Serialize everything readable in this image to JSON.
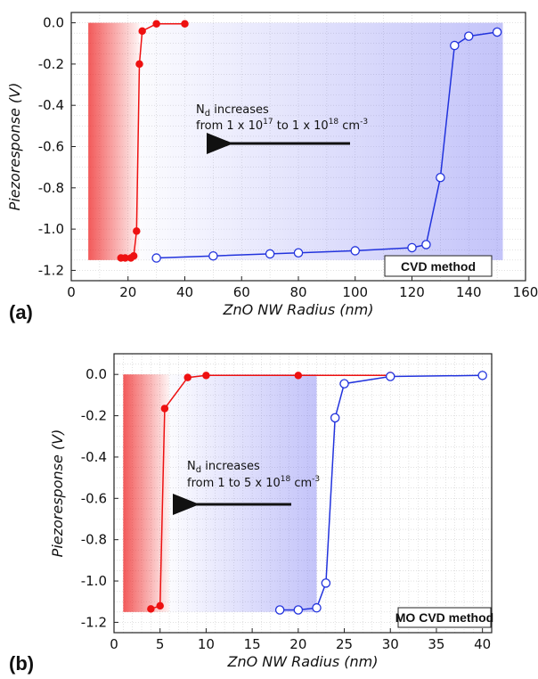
{
  "chart_data": [
    {
      "type": "line",
      "panel_label": "(a)",
      "xlabel": "ZnO NW Radius (nm)",
      "ylabel": "Piezoresponse (V)",
      "xlim": [
        0,
        160
      ],
      "ylim": [
        -1.25,
        0.05
      ],
      "xticks": [
        "0",
        "20",
        "40",
        "60",
        "80",
        "100",
        "120",
        "140",
        "160"
      ],
      "yticks": [
        "0.0",
        "-0.2",
        "-0.4",
        "-0.6",
        "-0.8",
        "-1.0",
        "-1.2"
      ],
      "grid": true,
      "annotation": {
        "line1_prefix": "N",
        "line1_sub": "d",
        "line1_suffix": " increases",
        "line2_a": "from 1 x 10",
        "line2_a_sup": "17",
        "line2_b": " to 1 x 10",
        "line2_b_sup": "18",
        "line2_c": " cm",
        "line2_c_sup": "-3"
      },
      "method_label": "CVD method",
      "series": [
        {
          "color": "#ee1111",
          "marker": "filled-circle",
          "x": [
            17.5,
            19,
            21,
            22,
            23,
            24,
            25,
            30,
            40
          ],
          "y": [
            -1.14,
            -1.14,
            -1.14,
            -1.13,
            -1.01,
            -0.2,
            -0.04,
            -0.005,
            -0.005
          ]
        },
        {
          "color": "#2233dd",
          "marker": "open-circle",
          "x": [
            30,
            50,
            70,
            80,
            100,
            120,
            125,
            130,
            135,
            140,
            150
          ],
          "y": [
            -1.14,
            -1.13,
            -1.12,
            -1.115,
            -1.105,
            -1.09,
            -1.075,
            -0.75,
            -0.11,
            -0.065,
            -0.045
          ]
        }
      ],
      "shading": [
        {
          "color": "#ee2222",
          "x_from": 6,
          "x_to": 24
        },
        {
          "color": "#5555ee",
          "x_from": 24,
          "x_to": 152
        }
      ]
    },
    {
      "type": "line",
      "panel_label": "(b)",
      "xlabel": "ZnO NW Radius (nm)",
      "ylabel": "Piezoresponse (V)",
      "xlim": [
        0,
        41
      ],
      "ylim": [
        -1.25,
        0.1
      ],
      "xticks": [
        "0",
        "5",
        "10",
        "15",
        "20",
        "25",
        "30",
        "35",
        "40"
      ],
      "yticks": [
        "0.0",
        "-0.2",
        "-0.4",
        "-0.6",
        "-0.8",
        "-1.0",
        "-1.2"
      ],
      "grid": true,
      "annotation": {
        "line1_prefix": "N",
        "line1_sub": "d",
        "line1_suffix": " increases",
        "line2_a": "from 1 to 5 x 10",
        "line2_a_sup": "18",
        "line2_b": " cm",
        "line2_b_sup": "-3"
      },
      "method_label": "MO CVD method",
      "series": [
        {
          "color": "#ee1111",
          "marker": "filled-circle",
          "x": [
            4,
            5,
            5.5,
            8,
            10,
            20,
            30
          ],
          "y": [
            -1.135,
            -1.12,
            -0.165,
            -0.015,
            -0.005,
            -0.005,
            -0.005
          ]
        },
        {
          "color": "#2233dd",
          "marker": "open-circle",
          "x": [
            18,
            20,
            22,
            23,
            24,
            25,
            30,
            40
          ],
          "y": [
            -1.14,
            -1.14,
            -1.13,
            -1.01,
            -0.21,
            -0.045,
            -0.01,
            -0.005
          ]
        }
      ],
      "shading": [
        {
          "color": "#ee2222",
          "x_from": 1,
          "x_to": 6
        },
        {
          "color": "#5555ee",
          "x_from": 6,
          "x_to": 22
        }
      ]
    }
  ]
}
